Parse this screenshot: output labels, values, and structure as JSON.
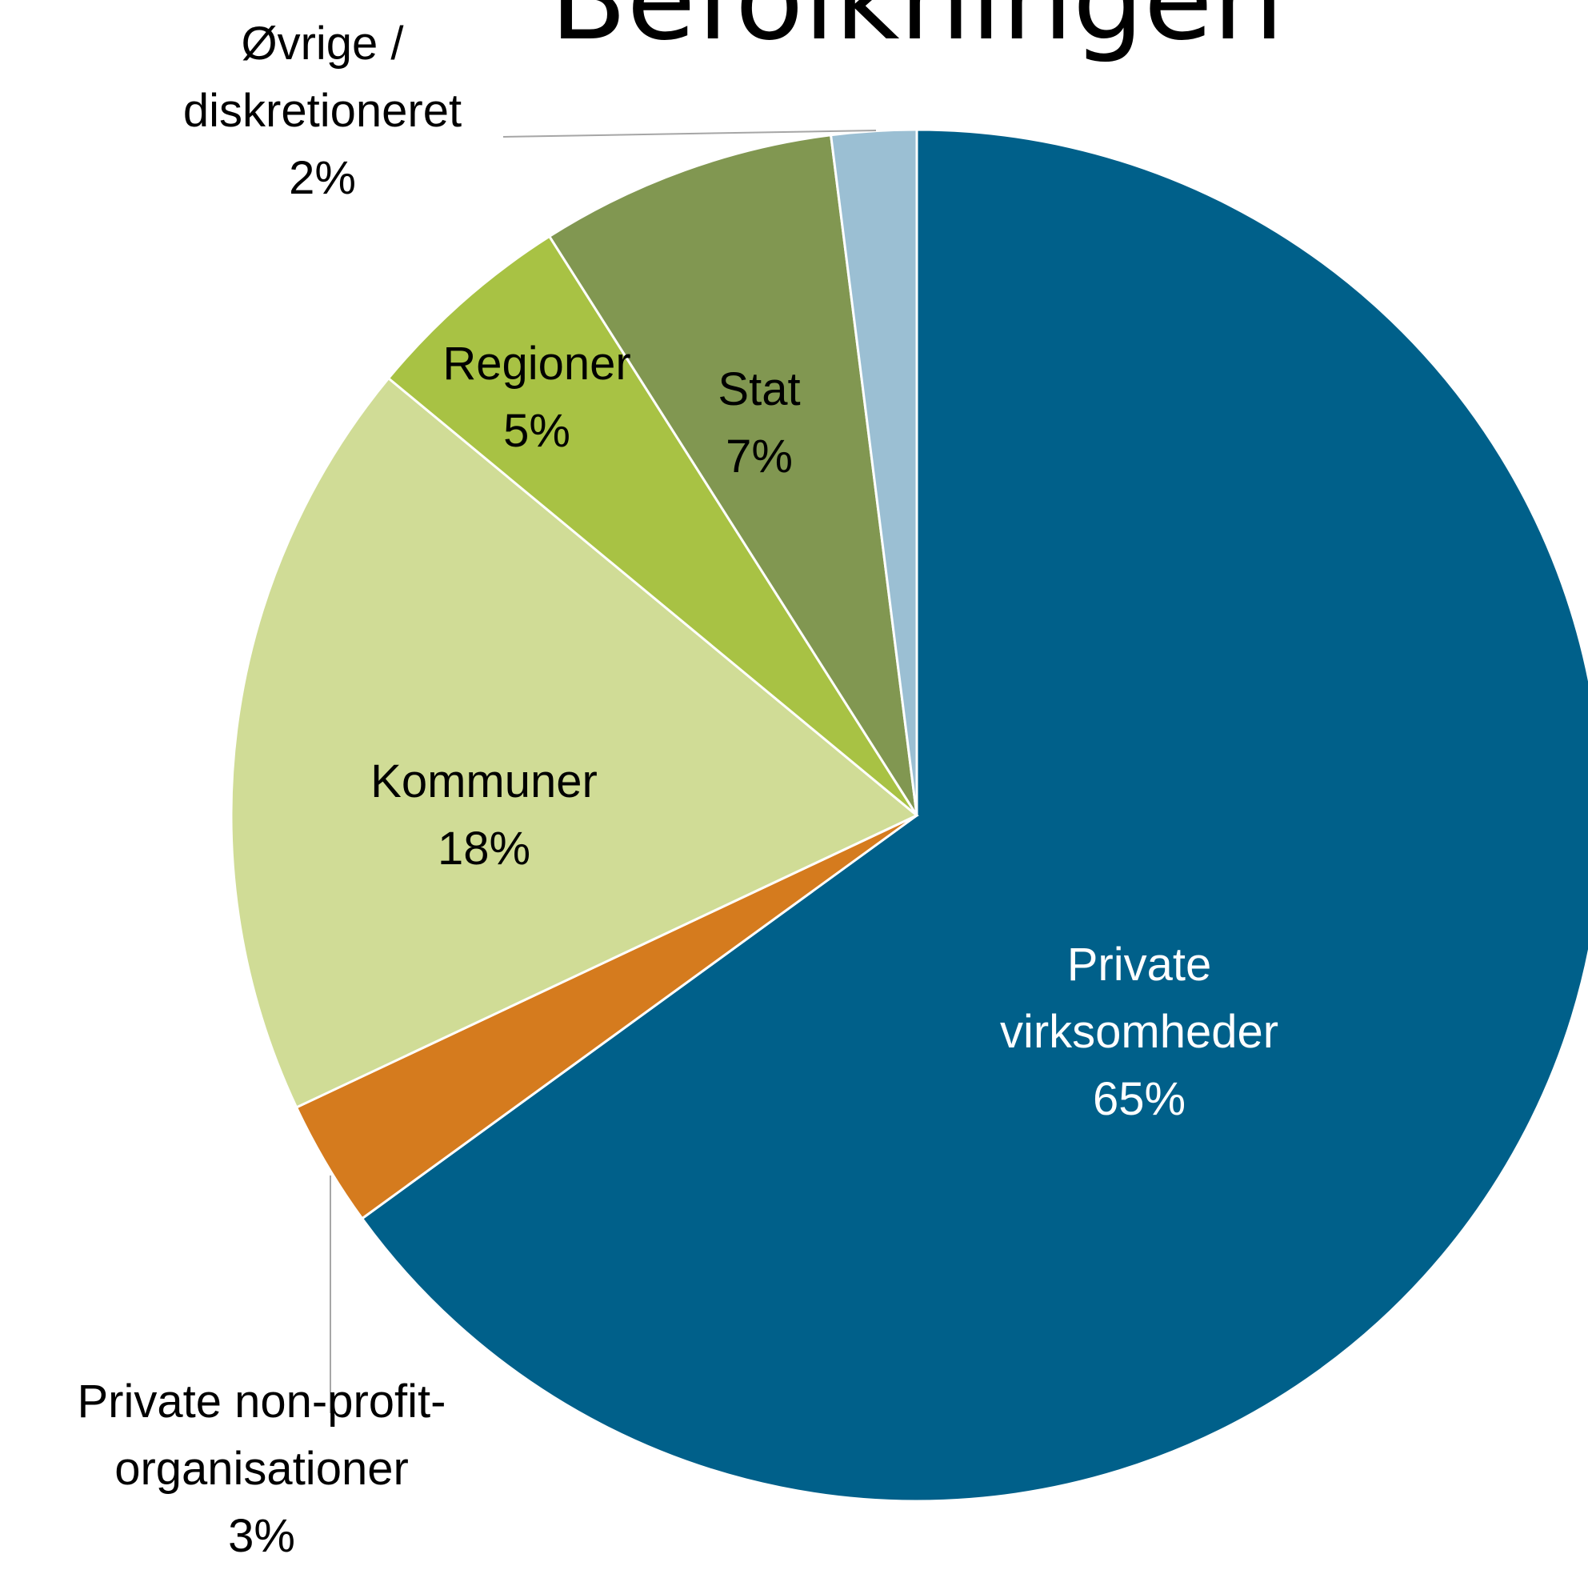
{
  "chart_data": {
    "type": "pie",
    "title": "Befolkningen",
    "categories": [
      "Private virksomheder",
      "Private non-profit-organisationer",
      "Kommuner",
      "Regioner",
      "Stat",
      "Øvrige / diskretioneret"
    ],
    "values": [
      65,
      3,
      18,
      5,
      7,
      2
    ],
    "value_labels": [
      "65%",
      "3%",
      "18%",
      "5%",
      "7%",
      "2%"
    ],
    "colors": [
      "#00608a",
      "#d57b1e",
      "#d0dc96",
      "#a8c244",
      "#819751",
      "#9bbfd3"
    ]
  }
}
